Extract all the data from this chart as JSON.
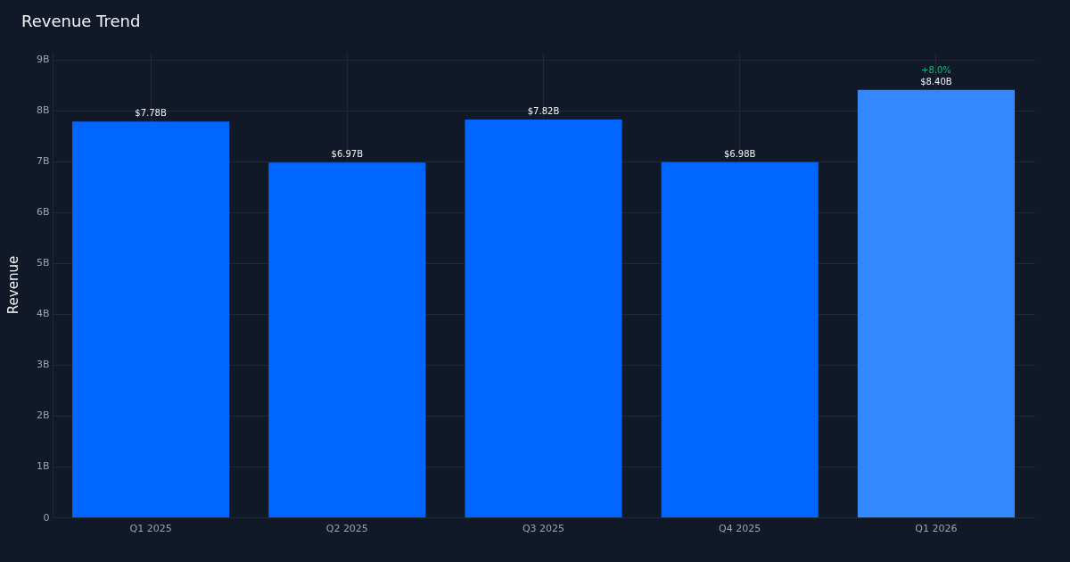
{
  "chart_data": {
    "type": "bar",
    "title": "Revenue Trend",
    "ylabel": "Revenue",
    "categories": [
      "Q1 2025",
      "Q2 2025",
      "Q3 2025",
      "Q4 2025",
      "Q1 2026"
    ],
    "values": [
      7.78,
      6.97,
      7.82,
      6.98,
      8.4
    ],
    "value_labels": [
      "$7.78B",
      "$6.97B",
      "$7.82B",
      "$6.98B",
      "$8.40B"
    ],
    "colors": [
      "#0066ff",
      "#0066ff",
      "#0066ff",
      "#0066ff",
      "#3388ff"
    ],
    "ylim": [
      0,
      9.15
    ],
    "yticks": [
      0,
      {
        "value": 1,
        "label": "1B"
      },
      {
        "value": 2,
        "label": "2B"
      },
      {
        "value": 3,
        "label": "3B"
      },
      {
        "value": 4,
        "label": "4B"
      },
      {
        "value": 5,
        "label": "5B"
      },
      {
        "value": 6,
        "label": "6B"
      },
      {
        "value": 7,
        "label": "7B"
      },
      {
        "value": 8,
        "label": "8B"
      },
      {
        "value": 9,
        "label": "9B"
      }
    ],
    "annotations": [
      {
        "text": "+8.0%",
        "x": "Q1 2026",
        "y": 8.4
      }
    ],
    "grid": true
  }
}
